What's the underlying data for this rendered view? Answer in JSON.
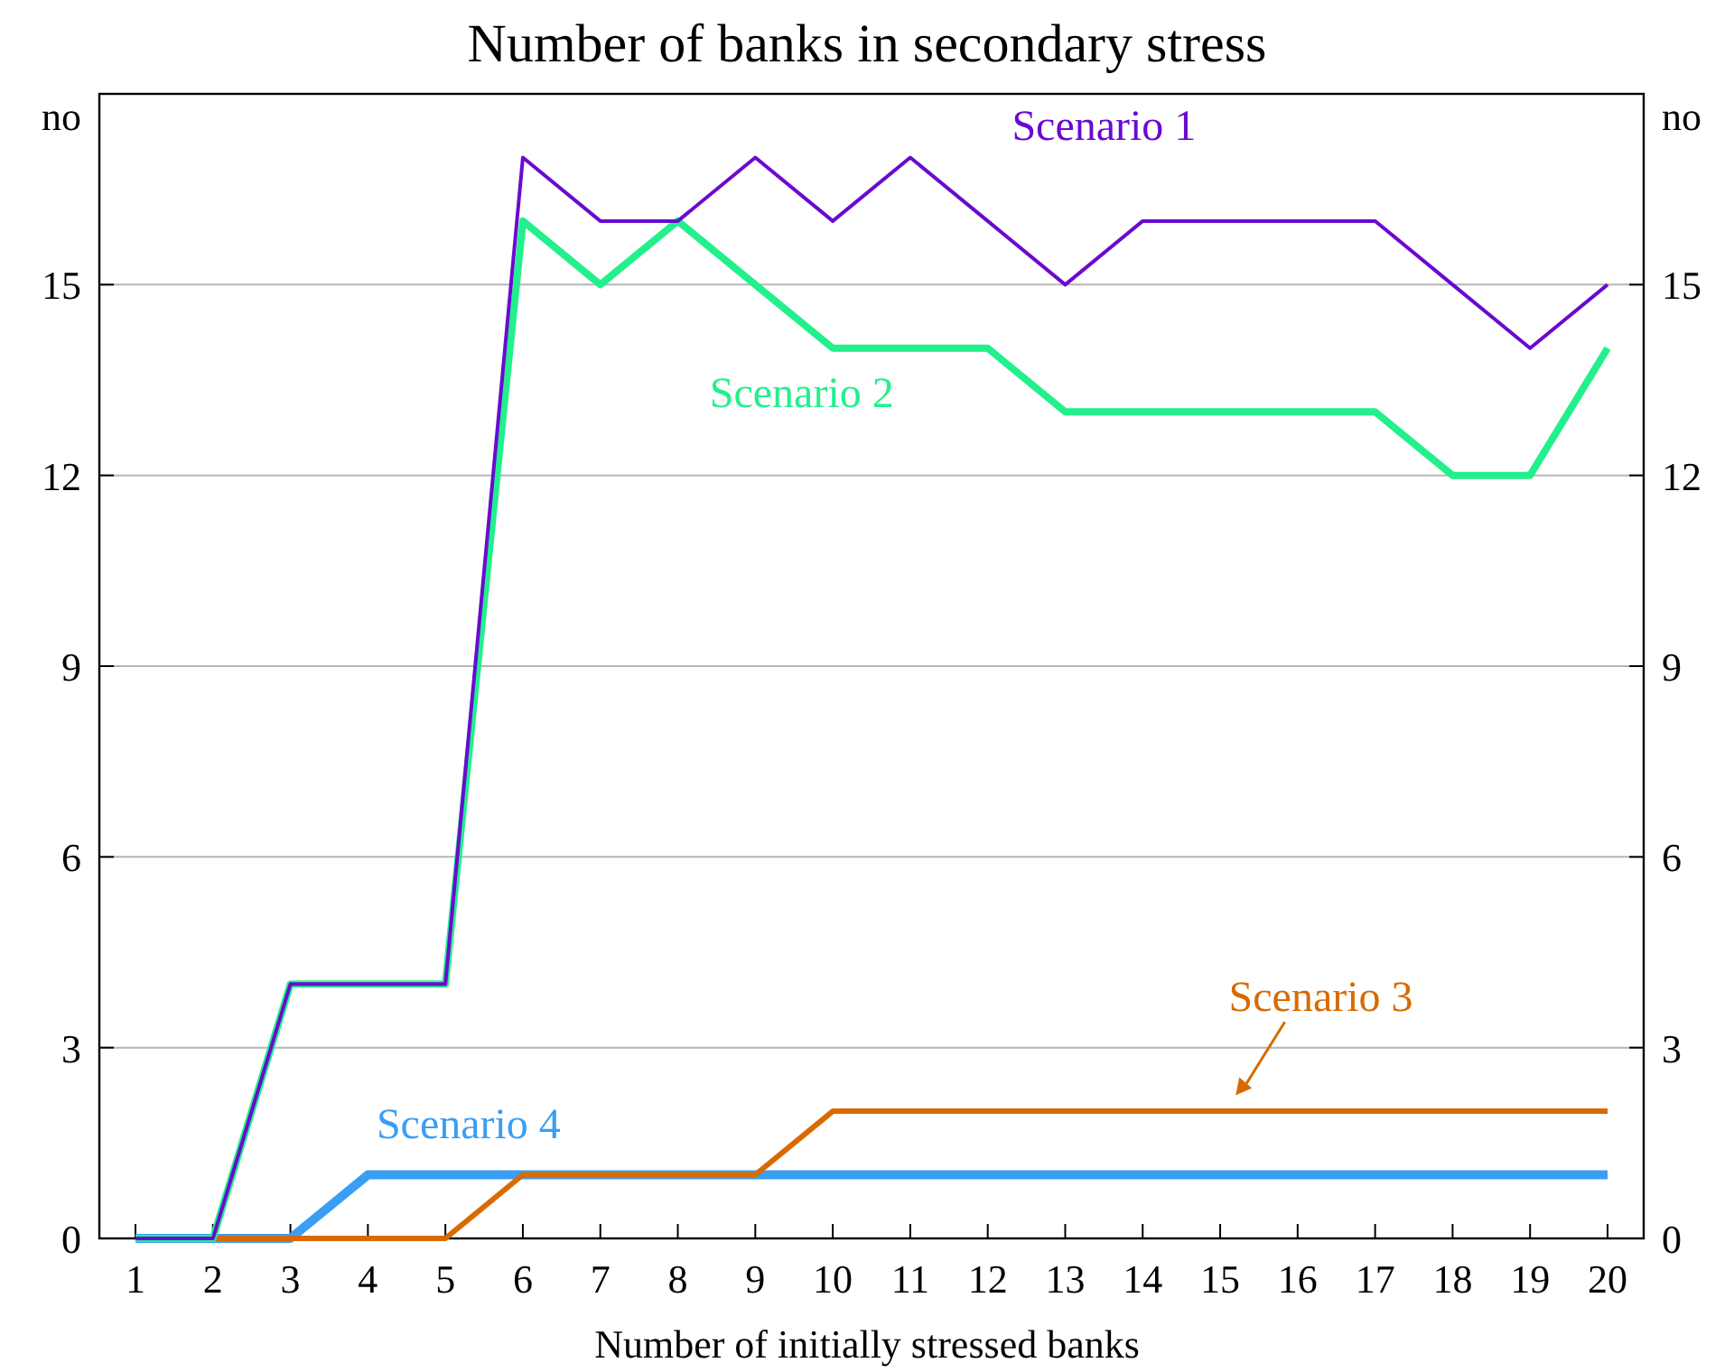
{
  "chart_data": {
    "type": "line",
    "title": "Number of banks in secondary stress",
    "xlabel": "Number of initially stressed banks",
    "ylabel": "no",
    "y2label": "no",
    "categories": [
      "1",
      "2",
      "3",
      "4",
      "5",
      "6",
      "7",
      "8",
      "9",
      "10",
      "11",
      "12",
      "13",
      "14",
      "15",
      "16",
      "17",
      "18",
      "19",
      "20"
    ],
    "series": [
      {
        "name": "Scenario 1",
        "color": "#6a0ad0",
        "values": [
          0,
          0,
          4,
          4,
          4,
          17,
          16,
          16,
          17,
          16,
          17,
          16,
          15,
          16,
          16,
          16,
          16,
          15,
          14,
          15
        ]
      },
      {
        "name": "Scenario 2",
        "color": "#22f08c",
        "values": [
          0,
          0,
          4,
          4,
          4,
          16,
          15,
          16,
          15,
          14,
          14,
          14,
          13,
          13,
          13,
          13,
          13,
          12,
          12,
          14
        ]
      },
      {
        "name": "Scenario 3",
        "color": "#d86a00",
        "values": [
          0,
          0,
          0,
          0,
          0,
          1,
          1,
          1,
          1,
          2,
          2,
          2,
          2,
          2,
          2,
          2,
          2,
          2,
          2,
          2
        ]
      },
      {
        "name": "Scenario 4",
        "color": "#3a9ef5",
        "values": [
          0,
          0,
          0,
          1,
          1,
          1,
          1,
          1,
          1,
          1,
          1,
          1,
          1,
          1,
          1,
          1,
          1,
          1,
          1,
          1
        ]
      }
    ],
    "ylim": [
      0,
      18
    ],
    "yticks": [
      0,
      3,
      6,
      9,
      12,
      15
    ],
    "y2lim": [
      0,
      18
    ],
    "y2ticks": [
      0,
      3,
      6,
      9,
      12,
      15
    ],
    "grid": "y",
    "legend": false,
    "marker": "none",
    "line_style": "solid"
  }
}
